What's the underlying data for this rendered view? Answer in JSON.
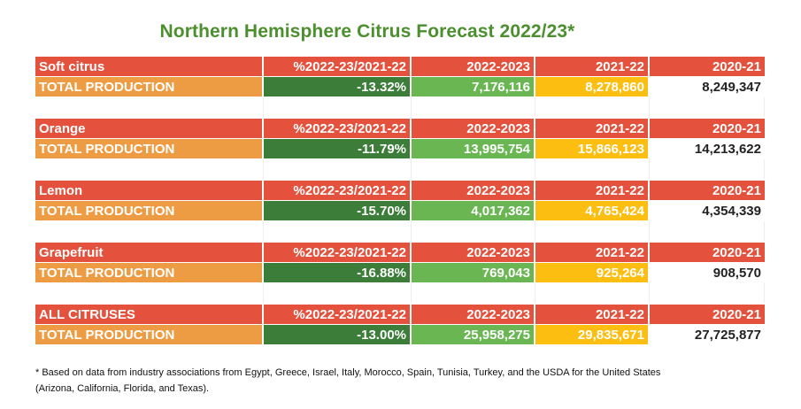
{
  "title": "Northern Hemisphere Citrus Forecast 2022/23*",
  "column_headers": {
    "pct": "%2022-23/2021-22",
    "cur": "2022-2023",
    "prev": "2021-22",
    "old": "2020-21"
  },
  "row_label": "TOTAL PRODUCTION",
  "colors": {
    "header_red": "#e4513d",
    "total_orange": "#ed9c43",
    "pct_dark_green": "#3b7d39",
    "current_green": "#6ab653",
    "prev_yellow": "#fbbe11",
    "title_green": "#4c8f2f"
  },
  "chart_data": {
    "type": "table",
    "title": "Northern Hemisphere Citrus Forecast 2022/23*",
    "columns": [
      "%2022-23/2021-22",
      "2022-2023",
      "2021-22",
      "2020-21"
    ],
    "blocks": [
      {
        "name": "Soft citrus",
        "row_label": "TOTAL PRODUCTION",
        "pct": "-13.32%",
        "cur": "7,176,116",
        "prev": "8,278,860",
        "old": "8,249,347"
      },
      {
        "name": "Orange",
        "row_label": "TOTAL PRODUCTION",
        "pct": "-11.79%",
        "cur": "13,995,754",
        "prev": "15,866,123",
        "old": "14,213,622"
      },
      {
        "name": "Lemon",
        "row_label": "TOTAL PRODUCTION",
        "pct": "-15.70%",
        "cur": "4,017,362",
        "prev": "4,765,424",
        "old": "4,354,339"
      },
      {
        "name": "Grapefruit",
        "row_label": "TOTAL PRODUCTION",
        "pct": "-16.88%",
        "cur": "769,043",
        "prev": "925,264",
        "old": "908,570"
      },
      {
        "name": "ALL CITRUSES",
        "row_label": "TOTAL PRODUCTION",
        "pct": "-13.00%",
        "cur": "25,958,275",
        "prev": "29,835,671",
        "old": "27,725,877"
      }
    ]
  },
  "footnote_line1": "* Based on data from industry associations from Egypt, Greece, Israel, Italy, Morocco, Spain, Tunisia, Turkey, and the USDA for the United States",
  "footnote_line2": "(Arizona, California, Florida, and Texas)."
}
